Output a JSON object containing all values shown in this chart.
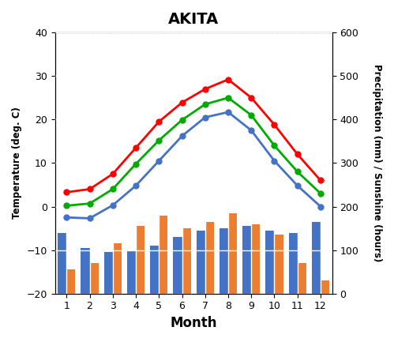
{
  "title": "AKITA",
  "months": [
    1,
    2,
    3,
    4,
    5,
    6,
    7,
    8,
    9,
    10,
    11,
    12
  ],
  "month_labels": [
    "1",
    "2",
    "3",
    "4",
    "5",
    "6",
    "7",
    "8",
    "9",
    "10",
    "11",
    "12"
  ],
  "temp_max": [
    3.3,
    4.0,
    7.5,
    13.5,
    19.5,
    23.9,
    27.0,
    29.2,
    25.0,
    18.8,
    12.0,
    6.0
  ],
  "temp_mean": [
    0.2,
    0.7,
    4.0,
    9.8,
    15.2,
    19.9,
    23.5,
    25.0,
    21.0,
    14.0,
    8.0,
    3.0
  ],
  "temp_min": [
    -2.5,
    -2.7,
    0.3,
    4.8,
    10.5,
    16.2,
    20.5,
    21.7,
    17.5,
    10.5,
    4.8,
    0.0
  ],
  "precipitation": [
    140,
    105,
    95,
    100,
    110,
    130,
    145,
    150,
    155,
    145,
    140,
    165
  ],
  "sunshine": [
    55,
    70,
    115,
    155,
    180,
    150,
    165,
    185,
    160,
    135,
    70,
    30
  ],
  "color_max": "#ff0000",
  "color_mean": "#00aa00",
  "color_min": "#4472c4",
  "color_precip": "#4472c4",
  "color_sun": "#ed7d31",
  "left_ylim": [
    -20,
    40
  ],
  "right_ylim": [
    0,
    600
  ],
  "left_yticks": [
    -20,
    -10,
    0,
    10,
    20,
    30,
    40
  ],
  "right_yticks": [
    0,
    100,
    200,
    300,
    400,
    500,
    600
  ],
  "ylabel_left": "Temperature (deg. C)",
  "ylabel_right": "Precipitation (mm) / Sunshine (hours)",
  "xlabel": "Month",
  "bar_width": 0.38,
  "grid_color": "white",
  "bg_color": "#d8d8d8",
  "figsize": [
    4.99,
    4.33
  ],
  "dpi": 100
}
